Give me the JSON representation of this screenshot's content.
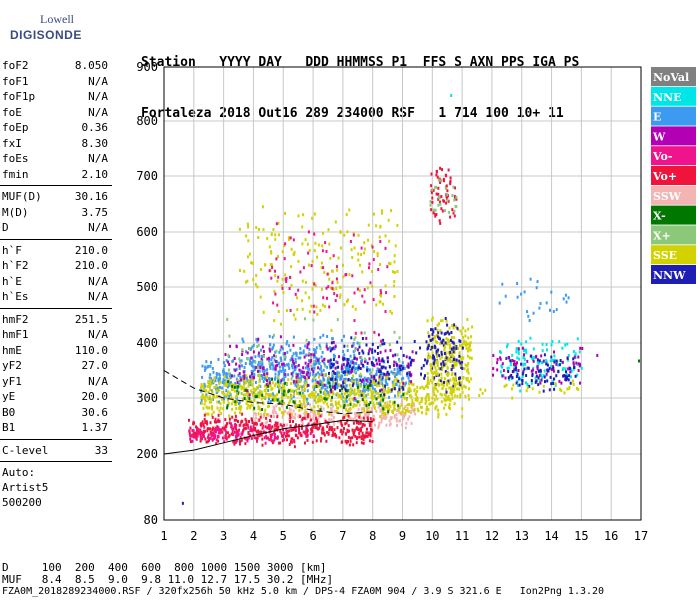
{
  "logo": {
    "top": "Lowell",
    "main": "DIGISONDE"
  },
  "header": {
    "line1": "Station   YYYY DAY   DDD HHMMSS P1  FFS S AXN PPS IGA PS",
    "line2": "Fortaleza 2018 Out16 289 234000 RSF   1 714 100 10+ 11"
  },
  "params": {
    "group1": [
      {
        "label": "foF2",
        "value": "8.050"
      },
      {
        "label": "foF1",
        "value": "N/A"
      },
      {
        "label": "foF1p",
        "value": "N/A"
      },
      {
        "label": "foE",
        "value": "N/A"
      },
      {
        "label": "foEp",
        "value": "0.36"
      },
      {
        "label": "fxI",
        "value": "8.30"
      },
      {
        "label": "foEs",
        "value": "N/A"
      },
      {
        "label": "fmin",
        "value": "2.10"
      }
    ],
    "group2": [
      {
        "label": "MUF(D)",
        "value": "30.16"
      },
      {
        "label": "M(D)",
        "value": "3.75"
      },
      {
        "label": "D",
        "value": "N/A"
      }
    ],
    "group3": [
      {
        "label": "h`F",
        "value": "210.0"
      },
      {
        "label": "h`F2",
        "value": "210.0"
      },
      {
        "label": "h`E",
        "value": "N/A"
      },
      {
        "label": "h`Es",
        "value": "N/A"
      }
    ],
    "group4": [
      {
        "label": "hmF2",
        "value": "251.5"
      },
      {
        "label": "hmF1",
        "value": "N/A"
      },
      {
        "label": "hmE",
        "value": "110.0"
      },
      {
        "label": "yF2",
        "value": "27.0"
      },
      {
        "label": "yF1",
        "value": "N/A"
      },
      {
        "label": "yE",
        "value": "20.0"
      },
      {
        "label": "B0",
        "value": "30.6"
      },
      {
        "label": "B1",
        "value": "1.37"
      }
    ],
    "clevel": {
      "label": "C-level",
      "value": "33"
    },
    "auto": [
      "Auto:",
      "Artist5",
      "500200"
    ]
  },
  "table": {
    "row1": "D     100  200  400  600  800 1000 1500 3000 [km]",
    "row2": "MUF   8.4  8.5  9.0  9.8 11.0 12.7 17.5 30.2 [MHz]"
  },
  "footer": "FZA0M_2018289234000.RSF / 320fx256h 50 kHz 5.0 km / DPS-4 FZA0M 904 / 3.9 S 321.6 E   Ion2Png 1.3.20",
  "legend": [
    {
      "label": "NoVal",
      "color": "#808080",
      "text": "#ffffff"
    },
    {
      "label": "NNE",
      "color": "#00e6e6",
      "text": "#ffffff"
    },
    {
      "label": "E",
      "color": "#3c9bf0",
      "text": "#ffffff"
    },
    {
      "label": "W",
      "color": "#b400b4",
      "text": "#ffffff"
    },
    {
      "label": "Vo-",
      "color": "#f0148c",
      "text": "#ffffff"
    },
    {
      "label": "Vo+",
      "color": "#f0143c",
      "text": "#ffffff"
    },
    {
      "label": "SSW",
      "color": "#f5b4b4",
      "text": "#ffffff"
    },
    {
      "label": "X-",
      "color": "#007800",
      "text": "#ffffff"
    },
    {
      "label": "X+",
      "color": "#8cc87a",
      "text": "#ffffff"
    },
    {
      "label": "SSE",
      "color": "#d2d200",
      "text": "#ffffff"
    },
    {
      "label": "NNW",
      "color": "#1e1eb4",
      "text": "#ffffff"
    }
  ],
  "chart_data": {
    "type": "scatter",
    "title": "",
    "xlabel": "",
    "ylabel": "",
    "xlim": [
      1,
      17
    ],
    "ylim": [
      80,
      900
    ],
    "x_ticks": [
      1,
      2,
      3,
      4,
      5,
      6,
      7,
      8,
      9,
      10,
      11,
      12,
      13,
      14,
      15,
      16,
      17
    ],
    "y_ticks": [
      80,
      200,
      300,
      400,
      500,
      600,
      700,
      800,
      900
    ],
    "grid": true,
    "legend_placement": "right",
    "clusters": [
      {
        "name": "SSW",
        "xmin": 4,
        "xmax": 9.4,
        "ymin": 245,
        "ymax": 300,
        "n": 260
      },
      {
        "name": "E",
        "xmin": 2.2,
        "xmax": 9.2,
        "ymin": 290,
        "ymax": 380,
        "n": 560
      },
      {
        "name": "E",
        "xmin": 3.5,
        "xmax": 7.5,
        "ymin": 330,
        "ymax": 420,
        "n": 200
      },
      {
        "name": "SSE",
        "xmin": 2.2,
        "xmax": 11,
        "ymin": 265,
        "ymax": 350,
        "n": 700
      },
      {
        "name": "Vo+",
        "xmin": 1.8,
        "xmax": 8,
        "ymin": 215,
        "ymax": 275,
        "n": 460
      },
      {
        "name": "Vo-",
        "xmin": 1.8,
        "xmax": 6,
        "ymin": 220,
        "ymax": 260,
        "n": 120
      },
      {
        "name": "W",
        "xmin": 3,
        "xmax": 9.4,
        "ymin": 300,
        "ymax": 420,
        "n": 180
      },
      {
        "name": "SSE",
        "xmin": 3.5,
        "xmax": 8.8,
        "ymin": 420,
        "ymax": 660,
        "n": 200
      },
      {
        "name": "Vo-",
        "xmin": 4.5,
        "xmax": 8.5,
        "ymin": 400,
        "ymax": 620,
        "n": 80
      },
      {
        "name": "NNW",
        "xmin": 6.5,
        "xmax": 11,
        "ymin": 300,
        "ymax": 420,
        "n": 180
      },
      {
        "name": "X-",
        "xmin": 3,
        "xmax": 9,
        "ymin": 270,
        "ymax": 340,
        "n": 70
      },
      {
        "name": "X+",
        "xmin": 3,
        "xmax": 9,
        "ymin": 280,
        "ymax": 460,
        "n": 70
      },
      {
        "name": "SSE",
        "xmin": 9.8,
        "xmax": 11.3,
        "ymin": 290,
        "ymax": 460,
        "n": 220
      },
      {
        "name": "NNW",
        "xmin": 9.8,
        "xmax": 11,
        "ymin": 340,
        "ymax": 460,
        "n": 70
      },
      {
        "name": "Vo+",
        "xmin": 9.9,
        "xmax": 10.8,
        "ymin": 610,
        "ymax": 730,
        "n": 60
      },
      {
        "name": "X+",
        "xmin": 9.9,
        "xmax": 10.8,
        "ymin": 620,
        "ymax": 700,
        "n": 25
      },
      {
        "name": "NNE",
        "xmin": 12.2,
        "xmax": 15,
        "ymin": 310,
        "ymax": 420,
        "n": 130
      },
      {
        "name": "W",
        "xmin": 12,
        "xmax": 15,
        "ymin": 320,
        "ymax": 400,
        "n": 70
      },
      {
        "name": "NNW",
        "xmin": 12.5,
        "xmax": 14.8,
        "ymin": 310,
        "ymax": 390,
        "n": 80
      },
      {
        "name": "SSE",
        "xmin": 11.5,
        "xmax": 15,
        "ymin": 300,
        "ymax": 340,
        "n": 25
      },
      {
        "name": "E",
        "xmin": 12.2,
        "xmax": 14.6,
        "ymin": 440,
        "ymax": 530,
        "n": 25
      }
    ],
    "points": [
      {
        "x": 1.6,
        "y": 113,
        "s": "NNW"
      },
      {
        "x": 10.6,
        "y": 850,
        "s": "NNE"
      },
      {
        "x": 16.9,
        "y": 370,
        "s": "X-"
      },
      {
        "x": 15.5,
        "y": 380,
        "s": "W"
      }
    ],
    "profile_upper": [
      [
        1,
        350
      ],
      [
        2,
        318
      ],
      [
        3,
        300
      ],
      [
        4,
        292
      ],
      [
        5,
        289
      ],
      [
        6,
        278
      ],
      [
        7,
        272
      ],
      [
        8,
        275
      ]
    ],
    "profile_lower": [
      [
        1,
        200
      ],
      [
        2,
        207
      ],
      [
        3,
        220
      ],
      [
        4,
        233
      ],
      [
        5,
        245
      ],
      [
        6,
        252
      ],
      [
        7,
        260
      ],
      [
        8,
        258
      ]
    ]
  }
}
